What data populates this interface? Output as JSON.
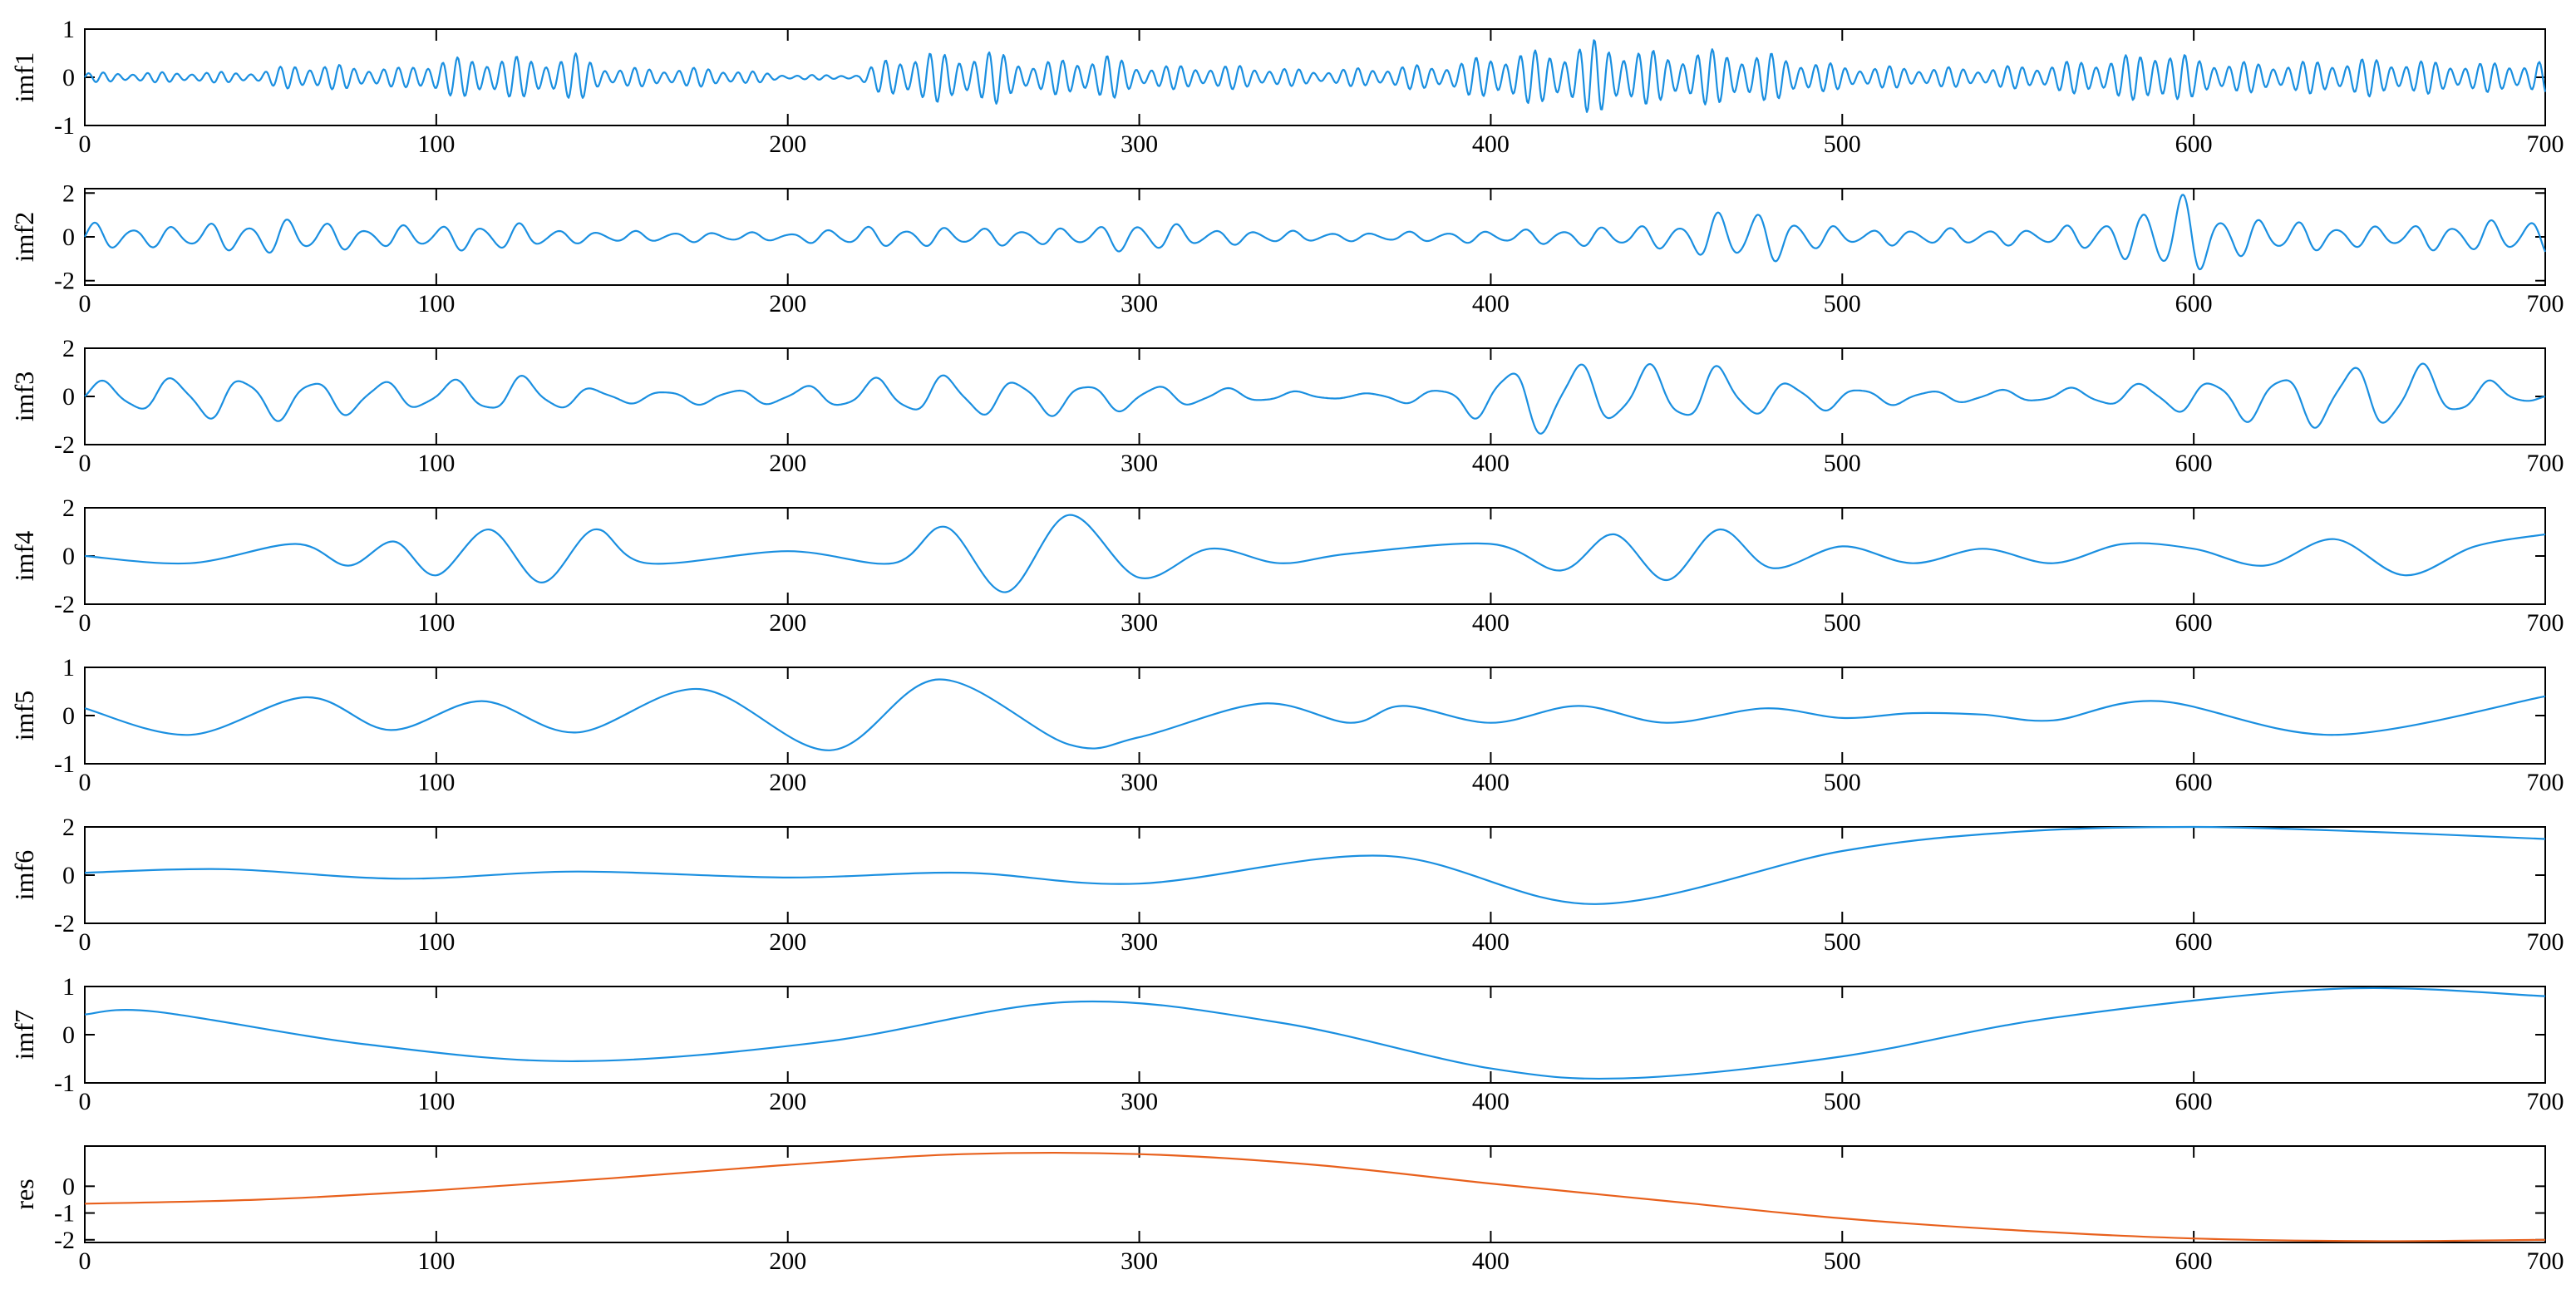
{
  "figure": {
    "x_ticks": [
      "0",
      "100",
      "200",
      "300",
      "400",
      "500",
      "600",
      "700"
    ],
    "colors": {
      "imf": "#1a8fe0",
      "res": "#e8601c",
      "axis": "#000000"
    }
  },
  "chart_data": [
    {
      "type": "line",
      "ylabel": "imf1",
      "xlim": [
        0,
        700
      ],
      "ylim": [
        -1,
        1
      ],
      "yticks": [
        "1",
        "0",
        "-1"
      ],
      "ytick_values": [
        1,
        0,
        -1
      ],
      "color": "#1a8fe0",
      "waveform": {
        "kind": "oscillation",
        "period": 4.2,
        "samples_per_unit": 3,
        "envelope_x": [
          0,
          50,
          60,
          90,
          100,
          120,
          130,
          140,
          150,
          180,
          200,
          220,
          230,
          260,
          270,
          290,
          300,
          330,
          350,
          390,
          400,
          420,
          430,
          450,
          460,
          480,
          500,
          540,
          560,
          585,
          590,
          600,
          620,
          650,
          680,
          700
        ],
        "envelope_y": [
          0.1,
          0.12,
          0.3,
          0.2,
          0.4,
          0.45,
          0.4,
          0.5,
          0.2,
          0.2,
          0.05,
          0.05,
          0.5,
          0.55,
          0.3,
          0.5,
          0.25,
          0.25,
          0.15,
          0.3,
          0.5,
          0.6,
          0.8,
          0.5,
          0.6,
          0.5,
          0.25,
          0.2,
          0.3,
          0.5,
          0.7,
          0.4,
          0.3,
          0.4,
          0.3,
          0.35
        ]
      }
    },
    {
      "type": "line",
      "ylabel": "imf2",
      "xlim": [
        0,
        700
      ],
      "ylim": [
        -2.2,
        2.2
      ],
      "yticks": [
        "2",
        "0",
        "-2"
      ],
      "ytick_values": [
        2,
        0,
        -2
      ],
      "color": "#1a8fe0",
      "waveform": {
        "kind": "oscillation",
        "period": 11,
        "samples_per_unit": 3,
        "envelope_x": [
          0,
          20,
          60,
          80,
          120,
          140,
          200,
          220,
          280,
          300,
          320,
          360,
          400,
          450,
          470,
          480,
          500,
          560,
          585,
          590,
          600,
          610,
          650,
          700
        ],
        "envelope_y": [
          0.7,
          0.5,
          0.9,
          0.5,
          0.7,
          0.3,
          0.2,
          0.5,
          0.4,
          0.8,
          0.4,
          0.2,
          0.3,
          0.6,
          1.4,
          1.2,
          0.4,
          0.4,
          1.2,
          2.1,
          2.0,
          1.0,
          0.5,
          0.9
        ]
      }
    },
    {
      "type": "line",
      "ylabel": "imf3",
      "xlim": [
        0,
        700
      ],
      "ylim": [
        -2,
        2
      ],
      "yticks": [
        "2",
        "0",
        "-2"
      ],
      "ytick_values": [
        2,
        0,
        -2
      ],
      "color": "#1a8fe0",
      "waveform": {
        "kind": "oscillation",
        "period": 20,
        "samples_per_unit": 3,
        "envelope_x": [
          0,
          40,
          60,
          100,
          120,
          150,
          200,
          240,
          280,
          320,
          360,
          390,
          400,
          410,
          420,
          440,
          460,
          480,
          520,
          560,
          600,
          640,
          660,
          700
        ],
        "envelope_y": [
          0.6,
          1.1,
          1.0,
          0.6,
          1.0,
          0.3,
          0.4,
          1.0,
          0.8,
          0.4,
          0.1,
          0.5,
          1.3,
          1.8,
          1.7,
          1.3,
          1.5,
          0.8,
          0.3,
          0.3,
          0.8,
          1.5,
          1.6,
          0.1
        ]
      }
    },
    {
      "type": "line",
      "ylabel": "imf4",
      "xlim": [
        0,
        700
      ],
      "ylim": [
        -2,
        2
      ],
      "yticks": [
        "2",
        "0",
        "-2"
      ],
      "ytick_values": [
        2,
        0,
        -2
      ],
      "color": "#1a8fe0",
      "waveform": {
        "kind": "points",
        "x": [
          0,
          30,
          60,
          75,
          88,
          100,
          115,
          130,
          145,
          160,
          200,
          230,
          245,
          262,
          280,
          300,
          320,
          340,
          360,
          400,
          420,
          435,
          450,
          465,
          480,
          500,
          520,
          540,
          560,
          580,
          600,
          620,
          640,
          660,
          680,
          700
        ],
        "y": [
          0,
          -0.3,
          0.5,
          -0.4,
          0.6,
          -0.8,
          1.1,
          -1.1,
          1.1,
          -0.3,
          0.2,
          -0.3,
          1.2,
          -1.5,
          1.7,
          -0.9,
          0.3,
          -0.3,
          0.1,
          0.5,
          -0.6,
          0.9,
          -1.0,
          1.1,
          -0.5,
          0.4,
          -0.3,
          0.3,
          -0.3,
          0.5,
          0.3,
          -0.4,
          0.7,
          -0.8,
          0.4,
          0.9
        ]
      }
    },
    {
      "type": "line",
      "ylabel": "imf5",
      "xlim": [
        0,
        700
      ],
      "ylim": [
        -1,
        1
      ],
      "yticks": [
        "1",
        "0",
        "-1"
      ],
      "ytick_values": [
        1,
        0,
        -1
      ],
      "color": "#1a8fe0",
      "waveform": {
        "kind": "points",
        "x": [
          0,
          30,
          63,
          87,
          113,
          140,
          175,
          212,
          243,
          280,
          300,
          335,
          360,
          375,
          400,
          425,
          450,
          478,
          500,
          520,
          540,
          560,
          590,
          640,
          700
        ],
        "y": [
          0.15,
          -0.4,
          0.38,
          -0.3,
          0.3,
          -0.35,
          0.55,
          -0.72,
          0.75,
          -0.6,
          -0.45,
          0.25,
          -0.15,
          0.2,
          -0.15,
          0.2,
          -0.15,
          0.15,
          -0.05,
          0.05,
          0.02,
          -0.1,
          0.3,
          -0.4,
          0.4
        ]
      }
    },
    {
      "type": "line",
      "ylabel": "imf6",
      "xlim": [
        0,
        700
      ],
      "ylim": [
        -2,
        2
      ],
      "yticks": [
        "2",
        "0",
        "-2"
      ],
      "ytick_values": [
        2,
        0,
        -2
      ],
      "color": "#1a8fe0",
      "waveform": {
        "kind": "points",
        "x": [
          0,
          40,
          90,
          140,
          200,
          250,
          300,
          370,
          430,
          500,
          550,
          600,
          650,
          700
        ],
        "y": [
          0.1,
          0.25,
          -0.15,
          0.15,
          -0.1,
          0.1,
          -0.35,
          0.8,
          -1.2,
          1.0,
          1.8,
          2.0,
          1.8,
          1.5
        ]
      }
    },
    {
      "type": "line",
      "ylabel": "imf7",
      "xlim": [
        0,
        700
      ],
      "ylim": [
        -1,
        1
      ],
      "yticks": [
        "1",
        "0",
        "-1"
      ],
      "ytick_values": [
        1,
        0,
        -1
      ],
      "color": "#1a8fe0",
      "waveform": {
        "kind": "points",
        "x": [
          0,
          20,
          80,
          140,
          210,
          280,
          340,
          400,
          440,
          500,
          560,
          640,
          700
        ],
        "y": [
          0.42,
          0.48,
          -0.2,
          -0.55,
          -0.15,
          0.68,
          0.25,
          -0.7,
          -0.9,
          -0.45,
          0.35,
          0.95,
          0.8
        ]
      }
    },
    {
      "type": "line",
      "ylabel": "res",
      "xlim": [
        0,
        700
      ],
      "ylim": [
        -2.1,
        1.5
      ],
      "yticks": [
        "0",
        "-1",
        "-2"
      ],
      "ytick_values": [
        0,
        -1,
        -2
      ],
      "color": "#e8601c",
      "waveform": {
        "kind": "points",
        "x": [
          0,
          50,
          100,
          150,
          200,
          250,
          300,
          350,
          400,
          450,
          500,
          550,
          600,
          650,
          700
        ],
        "y": [
          -0.65,
          -0.5,
          -0.15,
          0.3,
          0.8,
          1.2,
          1.2,
          0.8,
          0.1,
          -0.55,
          -1.2,
          -1.65,
          -1.95,
          -2.05,
          -2.0
        ]
      }
    }
  ]
}
